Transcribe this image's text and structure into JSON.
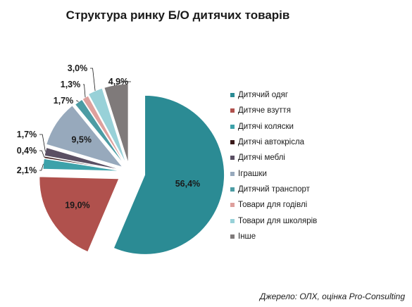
{
  "chart_data": {
    "type": "pie",
    "title": "Структура ринку Б/О дитячих товарів",
    "categories": [
      "Дитячий одяг",
      "Дитяче взуття",
      "Дитячі коляски",
      "Дитячі автокрісла",
      "Дитячі меблі",
      "Іграшки",
      "Дитячий транспорт",
      "Товари для годівлі",
      "Товари для школярів",
      "Інше"
    ],
    "values": [
      56.4,
      19.0,
      2.1,
      0.4,
      1.7,
      9.5,
      1.7,
      1.3,
      3.0,
      4.9
    ],
    "labels": [
      "56,4%",
      "19,0%",
      "2,1%",
      "0,4%",
      "1,7%",
      "9,5%",
      "1,7%",
      "1,3%",
      "3,0%",
      "4,9%"
    ],
    "colors": [
      "#2b8b94",
      "#b0514d",
      "#3da2aa",
      "#3a1a1a",
      "#5a4f63",
      "#97a9bc",
      "#4c9ca4",
      "#dea09d",
      "#98d1d8",
      "#7f7a7a"
    ],
    "legend_position": "right"
  },
  "source": "Джерело: ОЛХ, оцінка Pro-Consulting"
}
